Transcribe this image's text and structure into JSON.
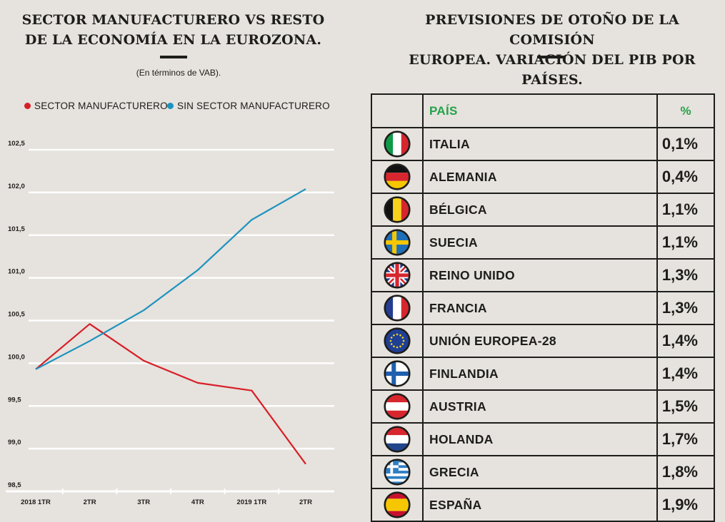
{
  "left_panel": {
    "title_line1": "SECTOR MANUFACTURERO VS RESTO",
    "title_line2": "DE LA ECONOMÍA EN LA EUROZONA.",
    "subtitle": "(En términos de VAB).",
    "legend": [
      {
        "label": "SECTOR MANUFACTURERO",
        "color": "#d71f27"
      },
      {
        "label": "SIN SECTOR MANUFACTURERO",
        "color": "#1c93bf"
      }
    ]
  },
  "chart_data": {
    "type": "line",
    "title": "SECTOR MANUFACTURERO VS RESTO DE LA ECONOMÍA EN LA EUROZONA.",
    "subtitle": "(En términos de VAB).",
    "categories": [
      "2018 1TR",
      "2TR",
      "3TR",
      "4TR",
      "2019 1TR",
      "2TR"
    ],
    "series": [
      {
        "name": "SECTOR MANUFACTURERO",
        "color": "#d71f27",
        "values": [
          99.93,
          100.46,
          100.03,
          99.77,
          99.68,
          98.82
        ]
      },
      {
        "name": "SIN SECTOR MANUFACTURERO",
        "color": "#1c93bf",
        "values": [
          99.93,
          100.26,
          100.62,
          101.09,
          101.68,
          102.04
        ]
      }
    ],
    "y_ticks": [
      "102,5",
      "102,0",
      "101,5",
      "101,0",
      "100,5",
      "100,0",
      "99,5",
      "99,0",
      "98,5"
    ],
    "y_tick_values": [
      102.5,
      102.0,
      101.5,
      101.0,
      100.5,
      100.0,
      99.5,
      99.0,
      98.5
    ],
    "ylim": [
      98.5,
      102.5
    ],
    "grid": true,
    "legend_position": "top"
  },
  "right_panel": {
    "title_line1": "PREVISIONES DE OTOÑO DE LA COMISIÓN",
    "title_line2": "EUROPEA. VARIACIÓN DEL PIB POR PAÍSES.",
    "header": {
      "country": "PAÍS",
      "pct": "%"
    },
    "rows": [
      {
        "country": "ITALIA",
        "pct": "0,1%",
        "flag": "italy-flag-icon"
      },
      {
        "country": "ALEMANIA",
        "pct": "0,4%",
        "flag": "germany-flag-icon"
      },
      {
        "country": "BÉLGICA",
        "pct": "1,1%",
        "flag": "belgium-flag-icon"
      },
      {
        "country": "SUECIA",
        "pct": "1,1%",
        "flag": "sweden-flag-icon"
      },
      {
        "country": "REINO UNIDO",
        "pct": "1,3%",
        "flag": "uk-flag-icon"
      },
      {
        "country": "FRANCIA",
        "pct": "1,3%",
        "flag": "france-flag-icon"
      },
      {
        "country": "UNIÓN EUROPEA-28",
        "pct": "1,4%",
        "flag": "eu-flag-icon"
      },
      {
        "country": "FINLANDIA",
        "pct": "1,4%",
        "flag": "finland-flag-icon"
      },
      {
        "country": "AUSTRIA",
        "pct": "1,5%",
        "flag": "austria-flag-icon"
      },
      {
        "country": "HOLANDA",
        "pct": "1,7%",
        "flag": "netherlands-flag-icon"
      },
      {
        "country": "GRECIA",
        "pct": "1,8%",
        "flag": "greece-flag-icon"
      },
      {
        "country": "ESPAÑA",
        "pct": "1,9%",
        "flag": "spain-flag-icon"
      }
    ]
  },
  "colors": {
    "background": "#e6e2dd",
    "red": "#d71f27",
    "blue": "#1c93bf",
    "green": "#24a34a",
    "ink": "#1d1d1b"
  }
}
